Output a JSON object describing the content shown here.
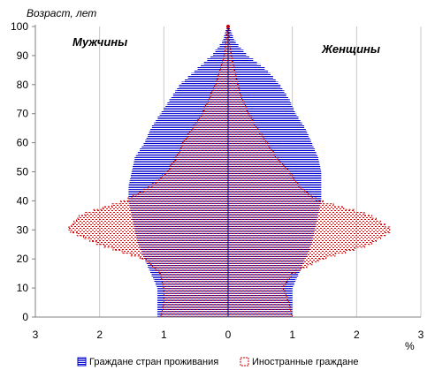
{
  "chart_data": {
    "type": "bar",
    "orientation": "horizontal-pyramid",
    "ylabel": "Возраст, лет",
    "xlabel": "%",
    "xlim": [
      -3,
      3
    ],
    "ylim": [
      0,
      100
    ],
    "x_ticks": [
      -3,
      -2,
      -1,
      0,
      1,
      2,
      3
    ],
    "x_tick_labels": [
      "3",
      "2",
      "1",
      "0",
      "1",
      "2",
      "3"
    ],
    "y_ticks": [
      0,
      10,
      20,
      30,
      40,
      50,
      60,
      70,
      80,
      90,
      100
    ],
    "y_tick_labels": [
      "0",
      "10",
      "20",
      "30",
      "40",
      "50",
      "60",
      "70",
      "80",
      "90",
      "100"
    ],
    "grid": "vertical",
    "legend_position": "bottom",
    "annotations": {
      "male": "Мужчины",
      "female": "Женщины"
    },
    "age_groups": [
      0,
      5,
      10,
      15,
      20,
      25,
      30,
      35,
      40,
      45,
      50,
      55,
      60,
      65,
      70,
      75,
      80,
      85,
      90,
      95,
      100
    ],
    "series": [
      {
        "name": "Граждане стран проживания",
        "color": "#0000cc",
        "male": [
          1.1,
          1.1,
          1.1,
          1.2,
          1.3,
          1.4,
          1.45,
          1.5,
          1.55,
          1.55,
          1.5,
          1.45,
          1.3,
          1.2,
          1.05,
          0.9,
          0.75,
          0.5,
          0.25,
          0.08,
          0.02
        ],
        "female": [
          1.0,
          1.0,
          1.0,
          1.1,
          1.2,
          1.3,
          1.35,
          1.4,
          1.45,
          1.45,
          1.45,
          1.4,
          1.3,
          1.2,
          1.05,
          0.95,
          0.8,
          0.6,
          0.3,
          0.1,
          0.02
        ]
      },
      {
        "name": "Иностранные граждане",
        "color": "#cc0000",
        "male": [
          1.05,
          1.0,
          1.0,
          1.05,
          1.3,
          2.0,
          2.5,
          2.3,
          1.6,
          1.2,
          0.95,
          0.8,
          0.7,
          0.55,
          0.4,
          0.3,
          0.2,
          0.12,
          0.06,
          0.03,
          0.01
        ],
        "female": [
          1.0,
          0.95,
          0.85,
          1.0,
          1.45,
          2.2,
          2.55,
          2.2,
          1.4,
          1.1,
          0.95,
          0.75,
          0.6,
          0.45,
          0.32,
          0.22,
          0.15,
          0.1,
          0.05,
          0.02,
          0.01
        ]
      }
    ]
  },
  "legend": {
    "items": [
      {
        "label": "Граждане стран проживания",
        "color": "#0000cc"
      },
      {
        "label": "Иностранные граждане",
        "color": "#cc0000"
      }
    ]
  }
}
